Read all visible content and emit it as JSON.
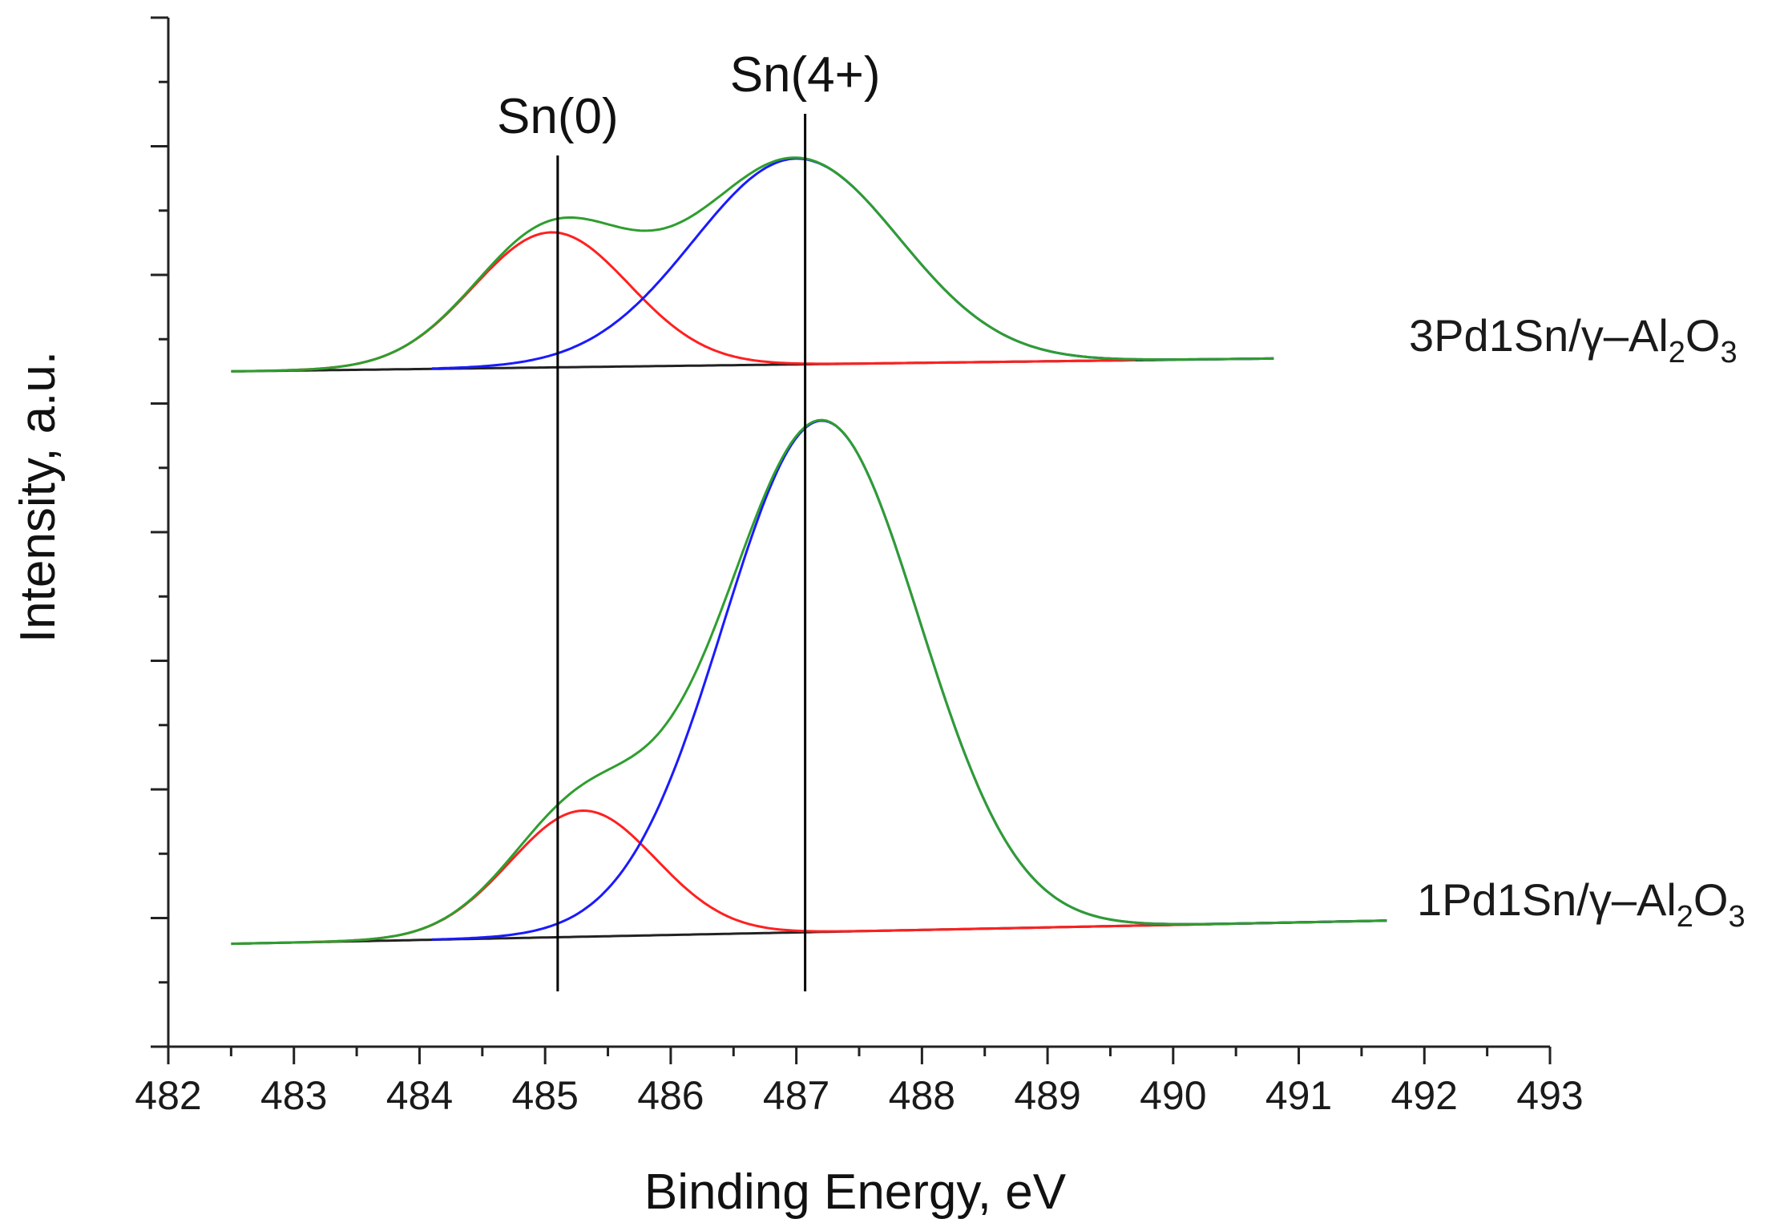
{
  "chart_data": {
    "type": "line",
    "xlabel": "Binding Energy, eV",
    "ylabel": "Intensity, a.u.",
    "xlim": [
      482,
      493
    ],
    "ylim": [
      0,
      16
    ],
    "x_ticks": [
      "482",
      "483",
      "484",
      "485",
      "486",
      "487",
      "488",
      "489",
      "490",
      "491",
      "492",
      "493"
    ],
    "y_tick_labels": false,
    "grid": false,
    "colors": {
      "envelope": "#2e9e2e",
      "sn0": "#ff2020",
      "sn4": "#1a1aff",
      "background": "#222222",
      "marker": "#000000"
    },
    "annotations": [
      {
        "text": "Sn(0)",
        "x": 485.1
      },
      {
        "text": "Sn(4+)",
        "x": 487.07
      }
    ],
    "samples": [
      {
        "label_main": "3Pd1Sn/γ–Al",
        "label_sub1": "2",
        "label_mid": "O",
        "label_sub2": "3",
        "background": {
          "x": [
            482.5,
            490.8
          ],
          "y": [
            10.5,
            10.7
          ]
        },
        "components": [
          {
            "role": "sn0",
            "center": 485.05,
            "height": 2.1,
            "sigma": 0.62,
            "x_range": [
              482.9,
              489.7
            ]
          },
          {
            "role": "sn4",
            "center": 487.0,
            "height": 3.2,
            "sigma": 0.82,
            "x_range": [
              484.1,
              490.8
            ]
          }
        ],
        "envelope": {
          "x_range": [
            482.5,
            490.8
          ]
        }
      },
      {
        "label_main": "1Pd1Sn/γ–Al",
        "label_sub1": "2",
        "label_mid": "O",
        "label_sub2": "3",
        "background": {
          "x": [
            482.5,
            491.7
          ],
          "y": [
            1.6,
            1.96
          ]
        },
        "components": [
          {
            "role": "sn0",
            "center": 485.3,
            "height": 1.96,
            "sigma": 0.58,
            "x_range": [
              483.1,
              491.5
            ]
          },
          {
            "role": "sn4",
            "center": 487.2,
            "height": 7.95,
            "sigma": 0.78,
            "x_range": [
              484.1,
              491.7
            ]
          }
        ],
        "envelope": {
          "x_range": [
            482.5,
            491.7
          ]
        }
      }
    ]
  }
}
